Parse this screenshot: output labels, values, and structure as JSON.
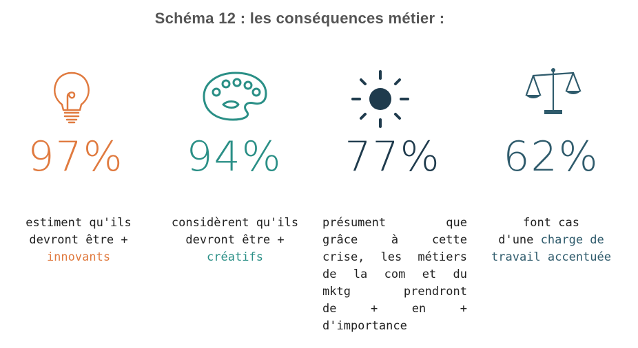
{
  "title": "Schéma 12 : les conséquences métier :",
  "colors": {
    "orange": "#e07a3f",
    "teal": "#2a8f86",
    "navy": "#1f3b4d",
    "steel": "#2f5b6c",
    "text": "#222222"
  },
  "items": [
    {
      "icon": "lightbulb-icon",
      "value": "97%",
      "caption_lines": [
        "estiment qu'ils",
        "devront être +"
      ],
      "highlight": "innovants"
    },
    {
      "icon": "palette-icon",
      "value": "94%",
      "caption_lines": [
        "considèrent qu'ils",
        "devront être +"
      ],
      "highlight": "créatifs"
    },
    {
      "icon": "sun-icon",
      "value": "77%",
      "caption_lines": [
        "présument que",
        "grâce à cette",
        "crise, les métiers",
        "de la com et du",
        "mktg prendront",
        "de + en +",
        "d'importance"
      ]
    },
    {
      "icon": "scales-icon",
      "value": "62%",
      "caption_line1": "font cas",
      "caption_prefix": "d'une",
      "highlight_lines": [
        "charge de",
        "travail accentuée"
      ]
    }
  ]
}
